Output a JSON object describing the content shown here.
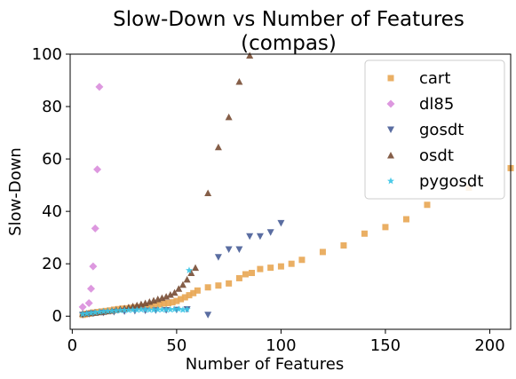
{
  "chart_data": {
    "type": "scatter",
    "title": "Slow-Down vs Number of Features\n(compas)",
    "xlabel": "Number of Features",
    "ylabel": "Slow-Down",
    "xlim": [
      -1,
      210
    ],
    "ylim": [
      -5,
      100
    ],
    "xticks": [
      0,
      50,
      100,
      150,
      200
    ],
    "yticks": [
      0,
      20,
      40,
      60,
      80,
      100
    ],
    "grid": false,
    "legend_position": "top-right",
    "series": [
      {
        "name": "cart",
        "marker": "square",
        "color": "#e8a857",
        "points": [
          [
            5,
            0.5
          ],
          [
            6,
            0.7
          ],
          [
            7,
            0.9
          ],
          [
            8,
            1.0
          ],
          [
            9,
            1.2
          ],
          [
            10,
            1.4
          ],
          [
            12,
            1.6
          ],
          [
            14,
            1.8
          ],
          [
            16,
            2.0
          ],
          [
            18,
            2.2
          ],
          [
            20,
            2.5
          ],
          [
            22,
            2.7
          ],
          [
            24,
            2.9
          ],
          [
            26,
            3.0
          ],
          [
            28,
            3.2
          ],
          [
            30,
            3.4
          ],
          [
            32,
            3.5
          ],
          [
            34,
            3.7
          ],
          [
            36,
            3.9
          ],
          [
            38,
            4.0
          ],
          [
            40,
            4.2
          ],
          [
            42,
            4.5
          ],
          [
            44,
            4.8
          ],
          [
            46,
            5.0
          ],
          [
            48,
            5.3
          ],
          [
            50,
            5.8
          ],
          [
            52,
            6.5
          ],
          [
            54,
            7.2
          ],
          [
            56,
            8.0
          ],
          [
            58,
            8.8
          ],
          [
            60,
            9.8
          ],
          [
            65,
            11.0
          ],
          [
            70,
            11.7
          ],
          [
            75,
            12.5
          ],
          [
            80,
            14.5
          ],
          [
            83,
            16.0
          ],
          [
            86,
            16.5
          ],
          [
            90,
            18.0
          ],
          [
            95,
            18.5
          ],
          [
            100,
            19.0
          ],
          [
            105,
            20.0
          ],
          [
            110,
            21.5
          ],
          [
            120,
            24.5
          ],
          [
            130,
            27.0
          ],
          [
            140,
            31.5
          ],
          [
            150,
            34.0
          ],
          [
            160,
            37.0
          ],
          [
            170,
            42.5
          ],
          [
            190,
            49.0
          ],
          [
            210,
            56.5
          ]
        ]
      },
      {
        "name": "dl85",
        "marker": "diamond",
        "color": "#da8fdc",
        "points": [
          [
            5,
            3.5
          ],
          [
            8,
            5.0
          ],
          [
            9,
            10.5
          ],
          [
            10,
            19.0
          ],
          [
            11,
            33.5
          ],
          [
            12,
            56.0
          ],
          [
            13,
            87.5
          ]
        ]
      },
      {
        "name": "gosdt",
        "marker": "triangle-down",
        "color": "#4c6199",
        "points": [
          [
            5,
            0.5
          ],
          [
            8,
            0.8
          ],
          [
            10,
            1.0
          ],
          [
            15,
            1.3
          ],
          [
            20,
            1.6
          ],
          [
            25,
            1.8
          ],
          [
            30,
            2.0
          ],
          [
            35,
            2.1
          ],
          [
            40,
            2.2
          ],
          [
            45,
            2.3
          ],
          [
            50,
            2.4
          ],
          [
            55,
            2.6
          ],
          [
            65,
            0.5
          ],
          [
            70,
            22.5
          ],
          [
            75,
            25.5
          ],
          [
            80,
            25.5
          ],
          [
            85,
            30.5
          ],
          [
            90,
            30.5
          ],
          [
            95,
            32.0
          ],
          [
            100,
            35.5
          ]
        ]
      },
      {
        "name": "osdt",
        "marker": "triangle-up",
        "color": "#7b5038",
        "points": [
          [
            5,
            1.0
          ],
          [
            7,
            1.1
          ],
          [
            9,
            1.2
          ],
          [
            11,
            1.3
          ],
          [
            13,
            1.5
          ],
          [
            15,
            1.7
          ],
          [
            17,
            1.9
          ],
          [
            19,
            2.1
          ],
          [
            21,
            2.4
          ],
          [
            23,
            2.7
          ],
          [
            25,
            3.0
          ],
          [
            27,
            3.4
          ],
          [
            29,
            3.8
          ],
          [
            31,
            4.2
          ],
          [
            33,
            4.6
          ],
          [
            35,
            5.0
          ],
          [
            37,
            5.5
          ],
          [
            39,
            6.0
          ],
          [
            41,
            6.5
          ],
          [
            43,
            7.0
          ],
          [
            45,
            7.5
          ],
          [
            47,
            8.2
          ],
          [
            49,
            9.0
          ],
          [
            51,
            10.5
          ],
          [
            53,
            12.0
          ],
          [
            55,
            14.0
          ],
          [
            57,
            16.5
          ],
          [
            59,
            18.5
          ],
          [
            65,
            47.0
          ],
          [
            70,
            64.5
          ],
          [
            75,
            76.0
          ],
          [
            80,
            89.5
          ],
          [
            85,
            99.5
          ]
        ]
      },
      {
        "name": "pygosdt",
        "marker": "star",
        "color": "#3cc5e6",
        "points": [
          [
            5,
            0.8
          ],
          [
            7,
            1.0
          ],
          [
            9,
            1.2
          ],
          [
            11,
            1.4
          ],
          [
            13,
            1.6
          ],
          [
            15,
            1.8
          ],
          [
            17,
            1.9
          ],
          [
            19,
            2.0
          ],
          [
            21,
            2.1
          ],
          [
            23,
            2.2
          ],
          [
            25,
            2.3
          ],
          [
            27,
            2.3
          ],
          [
            29,
            2.4
          ],
          [
            31,
            2.4
          ],
          [
            33,
            2.5
          ],
          [
            35,
            2.5
          ],
          [
            37,
            2.4
          ],
          [
            39,
            2.4
          ],
          [
            41,
            2.5
          ],
          [
            43,
            2.5
          ],
          [
            45,
            2.5
          ],
          [
            47,
            2.5
          ],
          [
            49,
            2.6
          ],
          [
            51,
            2.7
          ],
          [
            53,
            2.4
          ],
          [
            55,
            2.6
          ],
          [
            56,
            17.5
          ]
        ]
      }
    ]
  }
}
